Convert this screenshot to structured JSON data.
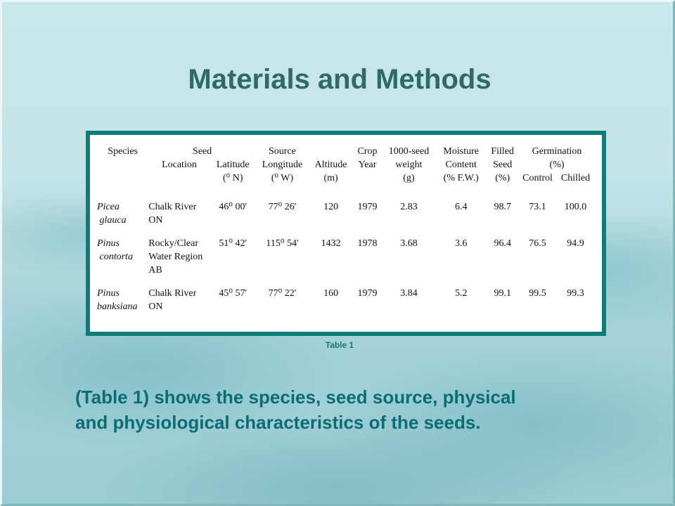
{
  "title": "Materials and Methods",
  "table": {
    "headers": {
      "species": "Species",
      "seed_group": "Seed",
      "location": "Location",
      "latitude": "Latitude",
      "latitude_unit": "(⁰ N)",
      "source_group": "Source",
      "longitude": "Longitude",
      "longitude_unit": "(⁰ W)",
      "altitude": "Altitude",
      "altitude_unit": "(m)",
      "crop_year_1": "Crop",
      "crop_year_2": "Year",
      "weight_1": "1000-seed",
      "weight_2": "weight",
      "weight_unit": "(g)",
      "moisture_1": "Moisture",
      "moisture_2": "Content",
      "moisture_unit": "(% F.W.)",
      "filled_1": "Filled",
      "filled_2": "Seed",
      "filled_unit": "(%)",
      "germination_1": "Germination",
      "germination_unit": "(%)",
      "control": "Control",
      "chilled": "Chilled"
    },
    "rows": [
      {
        "species_1": "Picea",
        "species_2": "glauca",
        "location_1": "Chalk River",
        "location_2": "ON",
        "location_3": "",
        "latitude": "46⁰ 00'",
        "longitude": "77⁰ 26'",
        "altitude": "120",
        "year": "1979",
        "weight": "2.83",
        "moisture": "6.4",
        "filled": "98.7",
        "control": "73.1",
        "chilled": "100.0"
      },
      {
        "species_1": "Pinus",
        "species_2": "contorta",
        "location_1": "Rocky/Clear",
        "location_2": "Water Region",
        "location_3": "AB",
        "latitude": "51⁰ 42'",
        "longitude": "115⁰ 54'",
        "altitude": "1432",
        "year": "1978",
        "weight": "3.68",
        "moisture": "3.6",
        "filled": "96.4",
        "control": "76.5",
        "chilled": "94.9"
      },
      {
        "species_1": "Pinus",
        "species_2": "banksiana",
        "location_1": "Chalk River",
        "location_2": "ON",
        "location_3": "",
        "latitude": "45⁰ 57'",
        "longitude": "77⁰ 22'",
        "altitude": "160",
        "year": "1979",
        "weight": "3.84",
        "moisture": "5.2",
        "filled": "99.1",
        "control": "99.5",
        "chilled": "99.3"
      }
    ]
  },
  "caption": "Table 1",
  "body_line_1": "(Table 1) shows the species, seed source, physical",
  "body_line_2": "and physiological characteristics of the seeds.",
  "colors": {
    "title": "#2f6a64",
    "frame": "#0f7c7a",
    "body_text": "#0b6d74"
  }
}
